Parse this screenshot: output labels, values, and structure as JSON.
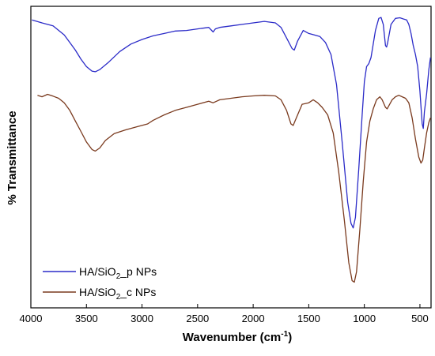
{
  "chart_data": {
    "type": "line",
    "xlabel": "Wavenumber (cm",
    "xlabel_sup": "-1",
    "xlabel_close": ")",
    "ylabel": "% Transmittance",
    "xlim": [
      4000,
      400
    ],
    "x_ticks": [
      4000,
      3500,
      3000,
      2500,
      2000,
      1500,
      1000,
      500
    ],
    "x_tick_labels": [
      "4000",
      "3500",
      "3000",
      "2500",
      "2000",
      "1500",
      "1000",
      "500"
    ],
    "y_ticks_shown": false,
    "legend_position": "bottom-left",
    "series": [
      {
        "name": "HA/SiO2_p NPs",
        "legend_parts": [
          "HA/SiO",
          "2",
          "_p NPs"
        ],
        "color": "#2b2bc8",
        "points": [
          [
            3990,
            0.955
          ],
          [
            3900,
            0.945
          ],
          [
            3800,
            0.935
          ],
          [
            3700,
            0.905
          ],
          [
            3650,
            0.88
          ],
          [
            3600,
            0.855
          ],
          [
            3550,
            0.825
          ],
          [
            3500,
            0.8
          ],
          [
            3450,
            0.785
          ],
          [
            3420,
            0.783
          ],
          [
            3380,
            0.79
          ],
          [
            3300,
            0.815
          ],
          [
            3200,
            0.85
          ],
          [
            3100,
            0.875
          ],
          [
            3000,
            0.89
          ],
          [
            2900,
            0.902
          ],
          [
            2800,
            0.91
          ],
          [
            2700,
            0.918
          ],
          [
            2600,
            0.92
          ],
          [
            2500,
            0.925
          ],
          [
            2400,
            0.93
          ],
          [
            2360,
            0.915
          ],
          [
            2340,
            0.925
          ],
          [
            2300,
            0.93
          ],
          [
            2200,
            0.935
          ],
          [
            2100,
            0.94
          ],
          [
            2000,
            0.945
          ],
          [
            1900,
            0.95
          ],
          [
            1800,
            0.945
          ],
          [
            1750,
            0.93
          ],
          [
            1700,
            0.895
          ],
          [
            1650,
            0.86
          ],
          [
            1630,
            0.855
          ],
          [
            1600,
            0.885
          ],
          [
            1550,
            0.92
          ],
          [
            1500,
            0.91
          ],
          [
            1450,
            0.905
          ],
          [
            1400,
            0.9
          ],
          [
            1350,
            0.88
          ],
          [
            1300,
            0.84
          ],
          [
            1250,
            0.74
          ],
          [
            1200,
            0.55
          ],
          [
            1150,
            0.35
          ],
          [
            1120,
            0.28
          ],
          [
            1100,
            0.265
          ],
          [
            1080,
            0.3
          ],
          [
            1050,
            0.46
          ],
          [
            1020,
            0.64
          ],
          [
            1000,
            0.75
          ],
          [
            980,
            0.8
          ],
          [
            960,
            0.81
          ],
          [
            940,
            0.83
          ],
          [
            900,
            0.92
          ],
          [
            870,
            0.96
          ],
          [
            850,
            0.963
          ],
          [
            830,
            0.94
          ],
          [
            810,
            0.87
          ],
          [
            800,
            0.865
          ],
          [
            790,
            0.88
          ],
          [
            760,
            0.94
          ],
          [
            720,
            0.96
          ],
          [
            680,
            0.962
          ],
          [
            650,
            0.958
          ],
          [
            620,
            0.955
          ],
          [
            600,
            0.94
          ],
          [
            580,
            0.91
          ],
          [
            560,
            0.87
          ],
          [
            540,
            0.84
          ],
          [
            520,
            0.8
          ],
          [
            500,
            0.72
          ],
          [
            480,
            0.61
          ],
          [
            470,
            0.595
          ],
          [
            460,
            0.65
          ],
          [
            440,
            0.71
          ],
          [
            420,
            0.79
          ],
          [
            405,
            0.83
          ]
        ]
      },
      {
        "name": "HA/SiO2_c NPs",
        "legend_parts": [
          "HA/SiO",
          "2",
          "_c NPs"
        ],
        "color": "#7a3a1e",
        "points": [
          [
            3940,
            0.705
          ],
          [
            3900,
            0.7
          ],
          [
            3850,
            0.708
          ],
          [
            3800,
            0.702
          ],
          [
            3750,
            0.695
          ],
          [
            3700,
            0.68
          ],
          [
            3650,
            0.655
          ],
          [
            3600,
            0.62
          ],
          [
            3550,
            0.585
          ],
          [
            3500,
            0.55
          ],
          [
            3450,
            0.525
          ],
          [
            3420,
            0.52
          ],
          [
            3380,
            0.53
          ],
          [
            3330,
            0.555
          ],
          [
            3250,
            0.578
          ],
          [
            3150,
            0.59
          ],
          [
            3050,
            0.6
          ],
          [
            2950,
            0.61
          ],
          [
            2900,
            0.622
          ],
          [
            2800,
            0.64
          ],
          [
            2700,
            0.655
          ],
          [
            2600,
            0.665
          ],
          [
            2500,
            0.675
          ],
          [
            2400,
            0.685
          ],
          [
            2360,
            0.68
          ],
          [
            2300,
            0.69
          ],
          [
            2200,
            0.695
          ],
          [
            2100,
            0.7
          ],
          [
            2000,
            0.703
          ],
          [
            1900,
            0.705
          ],
          [
            1800,
            0.703
          ],
          [
            1750,
            0.69
          ],
          [
            1700,
            0.655
          ],
          [
            1660,
            0.61
          ],
          [
            1640,
            0.605
          ],
          [
            1600,
            0.64
          ],
          [
            1560,
            0.675
          ],
          [
            1500,
            0.68
          ],
          [
            1460,
            0.69
          ],
          [
            1420,
            0.68
          ],
          [
            1380,
            0.665
          ],
          [
            1330,
            0.64
          ],
          [
            1280,
            0.58
          ],
          [
            1230,
            0.45
          ],
          [
            1180,
            0.29
          ],
          [
            1140,
            0.15
          ],
          [
            1110,
            0.09
          ],
          [
            1090,
            0.085
          ],
          [
            1070,
            0.12
          ],
          [
            1040,
            0.26
          ],
          [
            1010,
            0.42
          ],
          [
            980,
            0.55
          ],
          [
            950,
            0.62
          ],
          [
            920,
            0.66
          ],
          [
            890,
            0.69
          ],
          [
            860,
            0.7
          ],
          [
            840,
            0.69
          ],
          [
            810,
            0.665
          ],
          [
            795,
            0.66
          ],
          [
            780,
            0.67
          ],
          [
            750,
            0.69
          ],
          [
            720,
            0.7
          ],
          [
            690,
            0.705
          ],
          [
            660,
            0.7
          ],
          [
            630,
            0.695
          ],
          [
            600,
            0.68
          ],
          [
            570,
            0.63
          ],
          [
            540,
            0.56
          ],
          [
            510,
            0.5
          ],
          [
            490,
            0.48
          ],
          [
            475,
            0.49
          ],
          [
            460,
            0.53
          ],
          [
            440,
            0.58
          ],
          [
            420,
            0.615
          ],
          [
            405,
            0.63
          ]
        ]
      }
    ]
  }
}
